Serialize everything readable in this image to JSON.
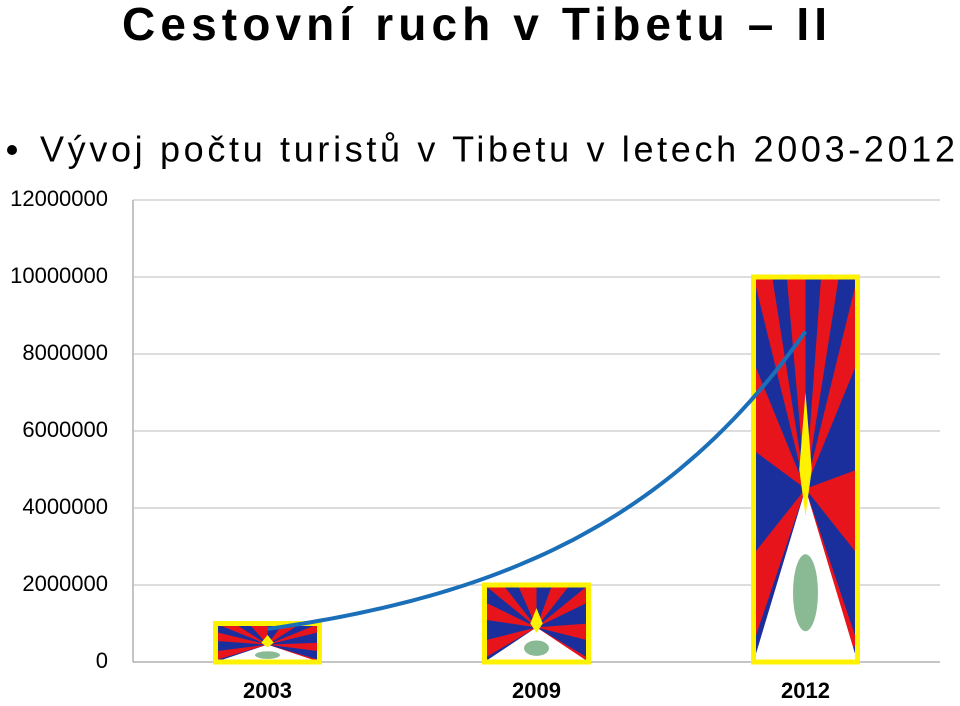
{
  "chart_data": {
    "type": "bar",
    "title": "Cestovní ruch v Tibetu – II",
    "subtitle": "Vývoj počtu turistů v Tibetu v letech 2003-2012",
    "categories": [
      "2003",
      "2009",
      "2012"
    ],
    "values": [
      1000000,
      2000000,
      10000000
    ],
    "ylim": [
      0,
      12000000
    ],
    "yticks": [
      0,
      2000000,
      4000000,
      6000000,
      8000000,
      10000000,
      12000000
    ],
    "grid": true,
    "trendline": "exponential",
    "trend_color": "#1a6fb8"
  }
}
